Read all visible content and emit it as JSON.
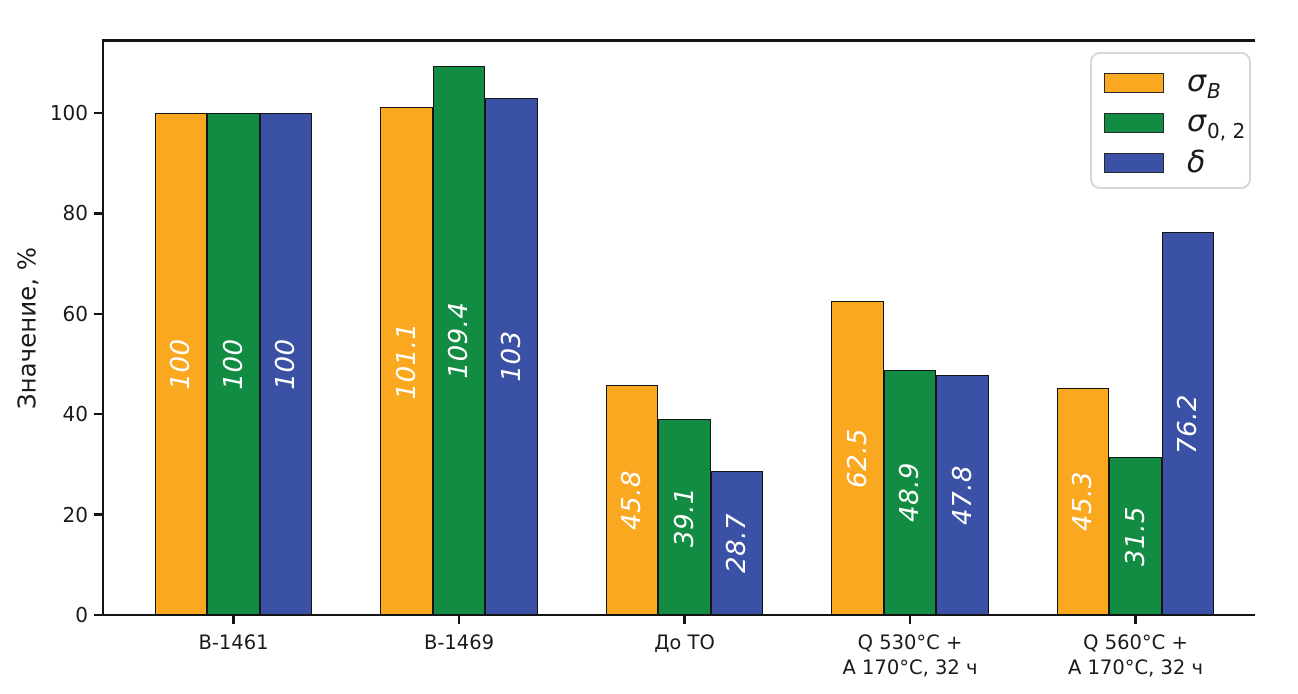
{
  "figure": {
    "background": "#ffffff",
    "axis_color": "#141414",
    "bar_label_color": "#ffffff"
  },
  "chart_data": {
    "type": "bar",
    "title": "",
    "xlabel": "",
    "ylabel": "Значение, %",
    "ylim": [
      0,
      114.5
    ],
    "yticks": [
      0,
      20,
      40,
      60,
      80,
      100
    ],
    "grid": false,
    "legend_position": "upper-right",
    "categories": [
      {
        "label": "В-1461",
        "lines": [
          "В-1461"
        ]
      },
      {
        "label": "В-1469",
        "lines": [
          "В-1469"
        ]
      },
      {
        "label": "До ТО",
        "lines": [
          "До ТО"
        ]
      },
      {
        "label": "Q 530°C + А 170°C, 32 ч",
        "lines": [
          "Q 530°C +",
          "А 170°C, 32 ч"
        ]
      },
      {
        "label": "Q 560°C + А 170°C, 32 ч",
        "lines": [
          "Q 560°C +",
          "А 170°C, 32 ч"
        ]
      }
    ],
    "series": [
      {
        "name": "sigma-B",
        "legend_display": "σB",
        "legend": {
          "symbol": "σ",
          "subscript": "B",
          "subscript_italic": true
        },
        "color": "#F9A820",
        "values": [
          100,
          101.1,
          45.8,
          62.5,
          45.3
        ],
        "labels": [
          "100",
          "101.1",
          "45.8",
          "62.5",
          "45.3"
        ]
      },
      {
        "name": "sigma-0-2",
        "legend_display": "σ0, 2",
        "legend": {
          "symbol": "σ",
          "subscript": "0, 2",
          "subscript_italic": false
        },
        "color": "#128C42",
        "values": [
          100,
          109.4,
          39.1,
          48.9,
          31.5
        ],
        "labels": [
          "100",
          "109.4",
          "39.1",
          "48.9",
          "31.5"
        ]
      },
      {
        "name": "delta",
        "legend_display": "δ",
        "legend": {
          "symbol": "δ",
          "subscript": "",
          "subscript_italic": false
        },
        "color": "#3B51A5",
        "values": [
          100,
          103,
          28.7,
          47.8,
          76.2
        ],
        "labels": [
          "100",
          "103",
          "28.7",
          "47.8",
          "76.2"
        ]
      }
    ]
  }
}
